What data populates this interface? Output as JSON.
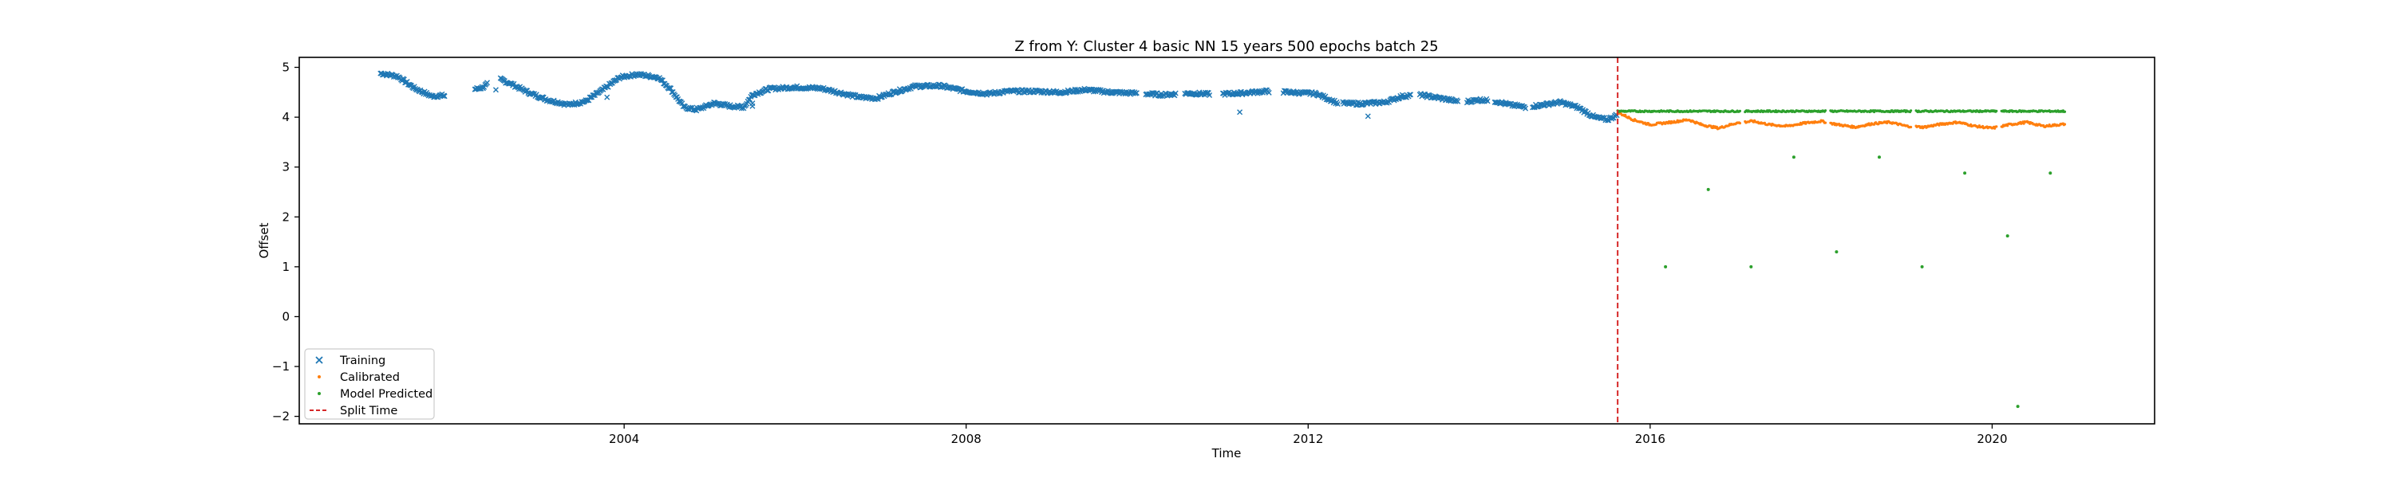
{
  "chart_data": {
    "type": "scatter",
    "title": "Z from Y: Cluster 4 basic NN 15 years 500 epochs batch 25",
    "xlabel": "Time",
    "ylabel": "Offset",
    "xlim": [
      2000.2,
      2021.9
    ],
    "ylim": [
      -2.15,
      5.2
    ],
    "x_ticks": [
      2004,
      2008,
      2012,
      2016,
      2020
    ],
    "y_ticks": [
      -2,
      -1,
      0,
      1,
      2,
      3,
      4,
      5
    ],
    "grid": false,
    "legend_position": "lower-left",
    "split_time": 2015.62,
    "colors": {
      "training": "#1f77b4",
      "calibrated": "#ff7f0e",
      "predicted": "#2ca02c",
      "split": "#d62728"
    },
    "series": [
      {
        "name": "Training",
        "marker": "x",
        "x_start": 2001.15,
        "x_end": 2015.62,
        "points": [
          [
            2001.15,
            4.88
          ],
          [
            2001.3,
            4.85
          ],
          [
            2001.45,
            4.75
          ],
          [
            2001.6,
            4.55
          ],
          [
            2001.75,
            4.4
          ],
          [
            2001.95,
            4.45
          ],
          [
            2002.3,
            4.55
          ],
          [
            2002.6,
            4.78
          ],
          [
            2002.8,
            4.65
          ],
          [
            2003.0,
            4.5
          ],
          [
            2003.2,
            4.35
          ],
          [
            2003.4,
            4.25
          ],
          [
            2003.6,
            4.3
          ],
          [
            2003.8,
            4.55
          ],
          [
            2003.95,
            4.8
          ],
          [
            2004.1,
            4.85
          ],
          [
            2004.3,
            4.82
          ],
          [
            2004.5,
            4.7
          ],
          [
            2004.6,
            4.35
          ],
          [
            2004.75,
            4.15
          ],
          [
            2004.9,
            4.2
          ],
          [
            2005.05,
            4.3
          ],
          [
            2005.2,
            4.25
          ],
          [
            2005.35,
            4.18
          ],
          [
            2005.5,
            4.45
          ],
          [
            2005.7,
            4.58
          ],
          [
            2005.9,
            4.6
          ],
          [
            2006.1,
            4.58
          ],
          [
            2006.3,
            4.57
          ],
          [
            2006.5,
            4.5
          ],
          [
            2006.7,
            4.42
          ],
          [
            2006.85,
            4.35
          ],
          [
            2007.0,
            4.4
          ],
          [
            2007.2,
            4.55
          ],
          [
            2007.4,
            4.62
          ],
          [
            2007.6,
            4.64
          ],
          [
            2007.8,
            4.6
          ],
          [
            2008.0,
            4.52
          ],
          [
            2008.2,
            4.47
          ],
          [
            2008.4,
            4.5
          ],
          [
            2008.6,
            4.55
          ],
          [
            2008.8,
            4.53
          ],
          [
            2009.0,
            4.5
          ],
          [
            2009.2,
            4.52
          ],
          [
            2009.4,
            4.55
          ],
          [
            2009.6,
            4.52
          ],
          [
            2009.8,
            4.5
          ],
          [
            2010.0,
            4.48
          ],
          [
            2010.2,
            4.45
          ],
          [
            2010.4,
            4.47
          ],
          [
            2010.6,
            4.48
          ],
          [
            2010.8,
            4.45
          ],
          [
            2011.0,
            4.47
          ],
          [
            2011.2,
            4.48
          ],
          [
            2011.4,
            4.5
          ],
          [
            2011.6,
            4.52
          ],
          [
            2011.8,
            4.5
          ],
          [
            2012.0,
            4.46
          ],
          [
            2012.15,
            4.5
          ],
          [
            2012.25,
            4.35
          ]
        ],
        "curve": [
          [
            2001.15,
            4.88
          ],
          [
            2001.35,
            4.82
          ],
          [
            2001.55,
            4.58
          ],
          [
            2001.75,
            4.42
          ],
          [
            2002.0,
            4.45
          ],
          [
            2002.35,
            4.6
          ],
          [
            2002.5,
            4.8
          ],
          [
            2002.7,
            4.65
          ],
          [
            2002.9,
            4.48
          ],
          [
            2003.1,
            4.35
          ],
          [
            2003.35,
            4.25
          ],
          [
            2003.55,
            4.32
          ],
          [
            2003.75,
            4.55
          ],
          [
            2003.95,
            4.8
          ],
          [
            2004.15,
            4.86
          ],
          [
            2004.4,
            4.8
          ],
          [
            2004.55,
            4.55
          ],
          [
            2004.7,
            4.2
          ],
          [
            2004.85,
            4.15
          ],
          [
            2005.05,
            4.28
          ],
          [
            2005.25,
            4.22
          ],
          [
            2005.4,
            4.2
          ],
          [
            2005.5,
            4.45
          ],
          [
            2005.7,
            4.57
          ],
          [
            2006.0,
            4.6
          ],
          [
            2006.3,
            4.58
          ],
          [
            2006.55,
            4.48
          ],
          [
            2006.75,
            4.4
          ],
          [
            2006.95,
            4.38
          ],
          [
            2007.15,
            4.5
          ],
          [
            2007.4,
            4.62
          ],
          [
            2007.7,
            4.63
          ],
          [
            2008.0,
            4.52
          ],
          [
            2008.25,
            4.47
          ],
          [
            2008.5,
            4.52
          ],
          [
            2008.8,
            4.52
          ],
          [
            2009.1,
            4.5
          ],
          [
            2009.4,
            4.55
          ],
          [
            2009.7,
            4.5
          ],
          [
            2010.0,
            4.48
          ],
          [
            2010.3,
            4.45
          ],
          [
            2010.6,
            4.48
          ],
          [
            2010.9,
            4.46
          ],
          [
            2011.2,
            4.48
          ],
          [
            2011.5,
            4.52
          ],
          [
            2011.8,
            4.5
          ],
          [
            2012.1,
            4.47
          ],
          [
            2012.35,
            4.28
          ],
          [
            2012.6,
            4.27
          ],
          [
            2012.9,
            4.3
          ],
          [
            2013.1,
            4.42
          ],
          [
            2013.3,
            4.45
          ],
          [
            2013.55,
            4.38
          ],
          [
            2013.8,
            4.3
          ],
          [
            2014.0,
            4.35
          ],
          [
            2014.2,
            4.32
          ],
          [
            2014.35,
            4.25
          ],
          [
            2014.55,
            4.2
          ],
          [
            2014.75,
            4.25
          ],
          [
            2014.95,
            4.3
          ],
          [
            2015.15,
            4.2
          ],
          [
            2015.35,
            4.0
          ],
          [
            2015.5,
            3.95
          ],
          [
            2015.62,
            4.05
          ]
        ]
      },
      {
        "name": "Calibrated",
        "marker": "dot"
      },
      {
        "name": "Model Predicted",
        "marker": "dot"
      }
    ],
    "training_curve_ext": [
      [
        2012.35,
        4.28
      ],
      [
        2012.6,
        4.28
      ],
      [
        2012.9,
        4.27
      ],
      [
        2013.2,
        4.42
      ],
      [
        2013.45,
        4.45
      ],
      [
        2013.7,
        4.32
      ],
      [
        2013.95,
        4.3
      ],
      [
        2014.15,
        4.35
      ],
      [
        2014.4,
        4.2
      ],
      [
        2014.6,
        4.22
      ],
      [
        2014.8,
        4.28
      ],
      [
        2015.0,
        4.2
      ],
      [
        2015.2,
        4.1
      ],
      [
        2015.4,
        3.95
      ],
      [
        2015.62,
        4.05
      ]
    ],
    "calibrated_curve": [
      [
        2015.62,
        4.1
      ],
      [
        2015.8,
        3.95
      ],
      [
        2016.0,
        3.85
      ],
      [
        2016.25,
        3.9
      ],
      [
        2016.45,
        3.95
      ],
      [
        2016.6,
        3.85
      ],
      [
        2016.8,
        3.78
      ],
      [
        2017.0,
        3.88
      ],
      [
        2017.2,
        3.92
      ],
      [
        2017.4,
        3.85
      ],
      [
        2017.6,
        3.82
      ],
      [
        2017.8,
        3.88
      ],
      [
        2018.0,
        3.92
      ],
      [
        2018.2,
        3.85
      ],
      [
        2018.4,
        3.8
      ],
      [
        2018.6,
        3.87
      ],
      [
        2018.8,
        3.9
      ],
      [
        2019.0,
        3.82
      ],
      [
        2019.2,
        3.8
      ],
      [
        2019.4,
        3.86
      ],
      [
        2019.6,
        3.9
      ],
      [
        2019.8,
        3.82
      ],
      [
        2020.0,
        3.78
      ],
      [
        2020.2,
        3.85
      ],
      [
        2020.4,
        3.9
      ],
      [
        2020.6,
        3.82
      ],
      [
        2020.85,
        3.86
      ]
    ],
    "predicted_band": {
      "x_start": 2015.62,
      "x_end": 2020.85,
      "y": 4.12
    },
    "predicted_outliers": [
      [
        2016.18,
        1.0
      ],
      [
        2016.68,
        2.55
      ],
      [
        2017.18,
        1.0
      ],
      [
        2017.68,
        3.2
      ],
      [
        2018.18,
        1.3
      ],
      [
        2018.68,
        3.2
      ],
      [
        2019.18,
        1.0
      ],
      [
        2019.68,
        2.88
      ],
      [
        2020.18,
        1.62
      ],
      [
        2020.3,
        -1.8
      ],
      [
        2020.68,
        2.88
      ]
    ]
  },
  "legend": {
    "training": "Training",
    "calibrated": "Calibrated",
    "predicted": "Model Predicted",
    "split": "Split Time"
  }
}
